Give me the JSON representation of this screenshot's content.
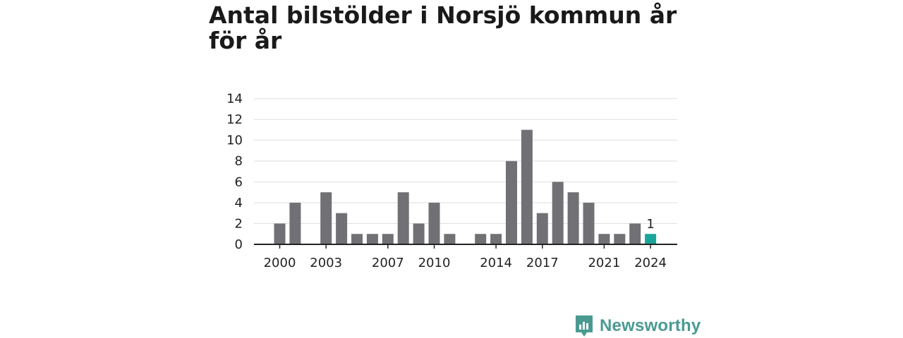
{
  "title": "Antal bilstölder i Norsjö kommun år för år",
  "brand": {
    "name": "Newsworthy",
    "icon": "newsworthy-logo-icon"
  },
  "colors": {
    "bar": "#717175",
    "highlight": "#1aa59b",
    "grid": "#dddddd",
    "axis": "#222222",
    "brand": "#4a9a92"
  },
  "chart_data": {
    "type": "bar",
    "categories": [
      "2000",
      "2001",
      "2002",
      "2003",
      "2004",
      "2005",
      "2006",
      "2007",
      "2008",
      "2009",
      "2010",
      "2011",
      "2012",
      "2013",
      "2014",
      "2015",
      "2016",
      "2017",
      "2018",
      "2019",
      "2020",
      "2021",
      "2022",
      "2023",
      "2024"
    ],
    "values": [
      2,
      4,
      0,
      5,
      3,
      1,
      1,
      1,
      5,
      2,
      4,
      1,
      0,
      1,
      1,
      8,
      11,
      3,
      6,
      5,
      4,
      1,
      1,
      2,
      1
    ],
    "highlight_index": 24,
    "data_labels": [
      {
        "index": 24,
        "text": "1"
      }
    ],
    "xtick_labels": [
      {
        "index": 0,
        "text": "2000"
      },
      {
        "index": 3,
        "text": "2003"
      },
      {
        "index": 7,
        "text": "2007"
      },
      {
        "index": 10,
        "text": "2010"
      },
      {
        "index": 14,
        "text": "2014"
      },
      {
        "index": 17,
        "text": "2017"
      },
      {
        "index": 21,
        "text": "2021"
      },
      {
        "index": 24,
        "text": "2024"
      }
    ],
    "yticks": [
      0,
      2,
      4,
      6,
      8,
      10,
      12,
      14
    ],
    "ylim": [
      0,
      14
    ],
    "grid": true,
    "legend": "none",
    "xlabel": "",
    "ylabel": ""
  }
}
